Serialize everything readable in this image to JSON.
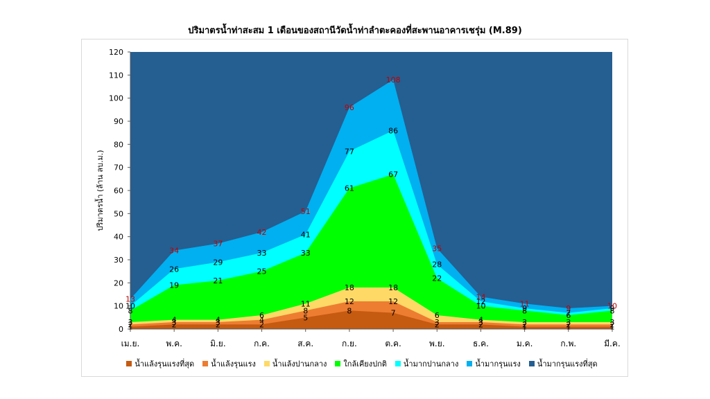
{
  "chart_data": {
    "type": "area",
    "title": "ปริมาตรน้ำท่าสะสม 1 เดือนของสถานีวัดน้ำท่าลำตะคองที่สะพานอาคารเชรุ่ม (M.89)",
    "xlabel": "",
    "ylabel": "ปริมาตรน้ำ (ล้าน ลบ.ม.)",
    "ylim": [
      0,
      120
    ],
    "yticks": [
      "0",
      "10",
      "20",
      "30",
      "40",
      "50",
      "60",
      "70",
      "80",
      "90",
      "100",
      "110",
      "120"
    ],
    "categories": [
      "เม.ย.",
      "พ.ค.",
      "มิ.ย.",
      "ก.ค.",
      "ส.ค.",
      "ก.ย.",
      "ต.ค.",
      "พ.ย.",
      "ธ.ค.",
      "ม.ค.",
      "ก.พ.",
      "มี.ค."
    ],
    "grid": false,
    "legend_position": "bottom",
    "series": [
      {
        "name": "น้ำแล้งรุนแรงที่สุด",
        "color": "#c55a11",
        "values": [
          1,
          2,
          2,
          2,
          5,
          8,
          7,
          2,
          2,
          1,
          1,
          1
        ]
      },
      {
        "name": "น้ำแล้งรุนแรง",
        "color": "#ed7d31",
        "values": [
          2,
          3,
          3,
          4,
          8,
          12,
          12,
          3,
          3,
          2,
          2,
          2
        ]
      },
      {
        "name": "น้ำแล้งปานกลาง",
        "color": "#ffd966",
        "values": [
          3,
          4,
          4,
          6,
          11,
          18,
          18,
          6,
          4,
          3,
          3,
          3
        ]
      },
      {
        "name": "ใกล้เคียงปกติ",
        "color": "#00ff00",
        "values": [
          8,
          19,
          21,
          25,
          33,
          61,
          67,
          22,
          10,
          8,
          6,
          8
        ]
      },
      {
        "name": "น้ำมากปานกลาง",
        "color": "#00ffff",
        "values": [
          10,
          26,
          29,
          33,
          41,
          77,
          86,
          28,
          12,
          9,
          7,
          9
        ]
      },
      {
        "name": "น้ำมากรุนแรง",
        "color": "#00b0f0",
        "values": [
          13,
          34,
          37,
          42,
          51,
          96,
          108,
          35,
          14,
          11,
          9,
          10
        ]
      },
      {
        "name": "น้ำมากรุนแรงที่สุด",
        "color": "#255e91",
        "values": [
          120,
          120,
          120,
          120,
          120,
          120,
          120,
          120,
          120,
          120,
          120,
          120
        ]
      }
    ],
    "label_colors": {
      "default": "#000000",
      "top": "#c00000"
    }
  }
}
